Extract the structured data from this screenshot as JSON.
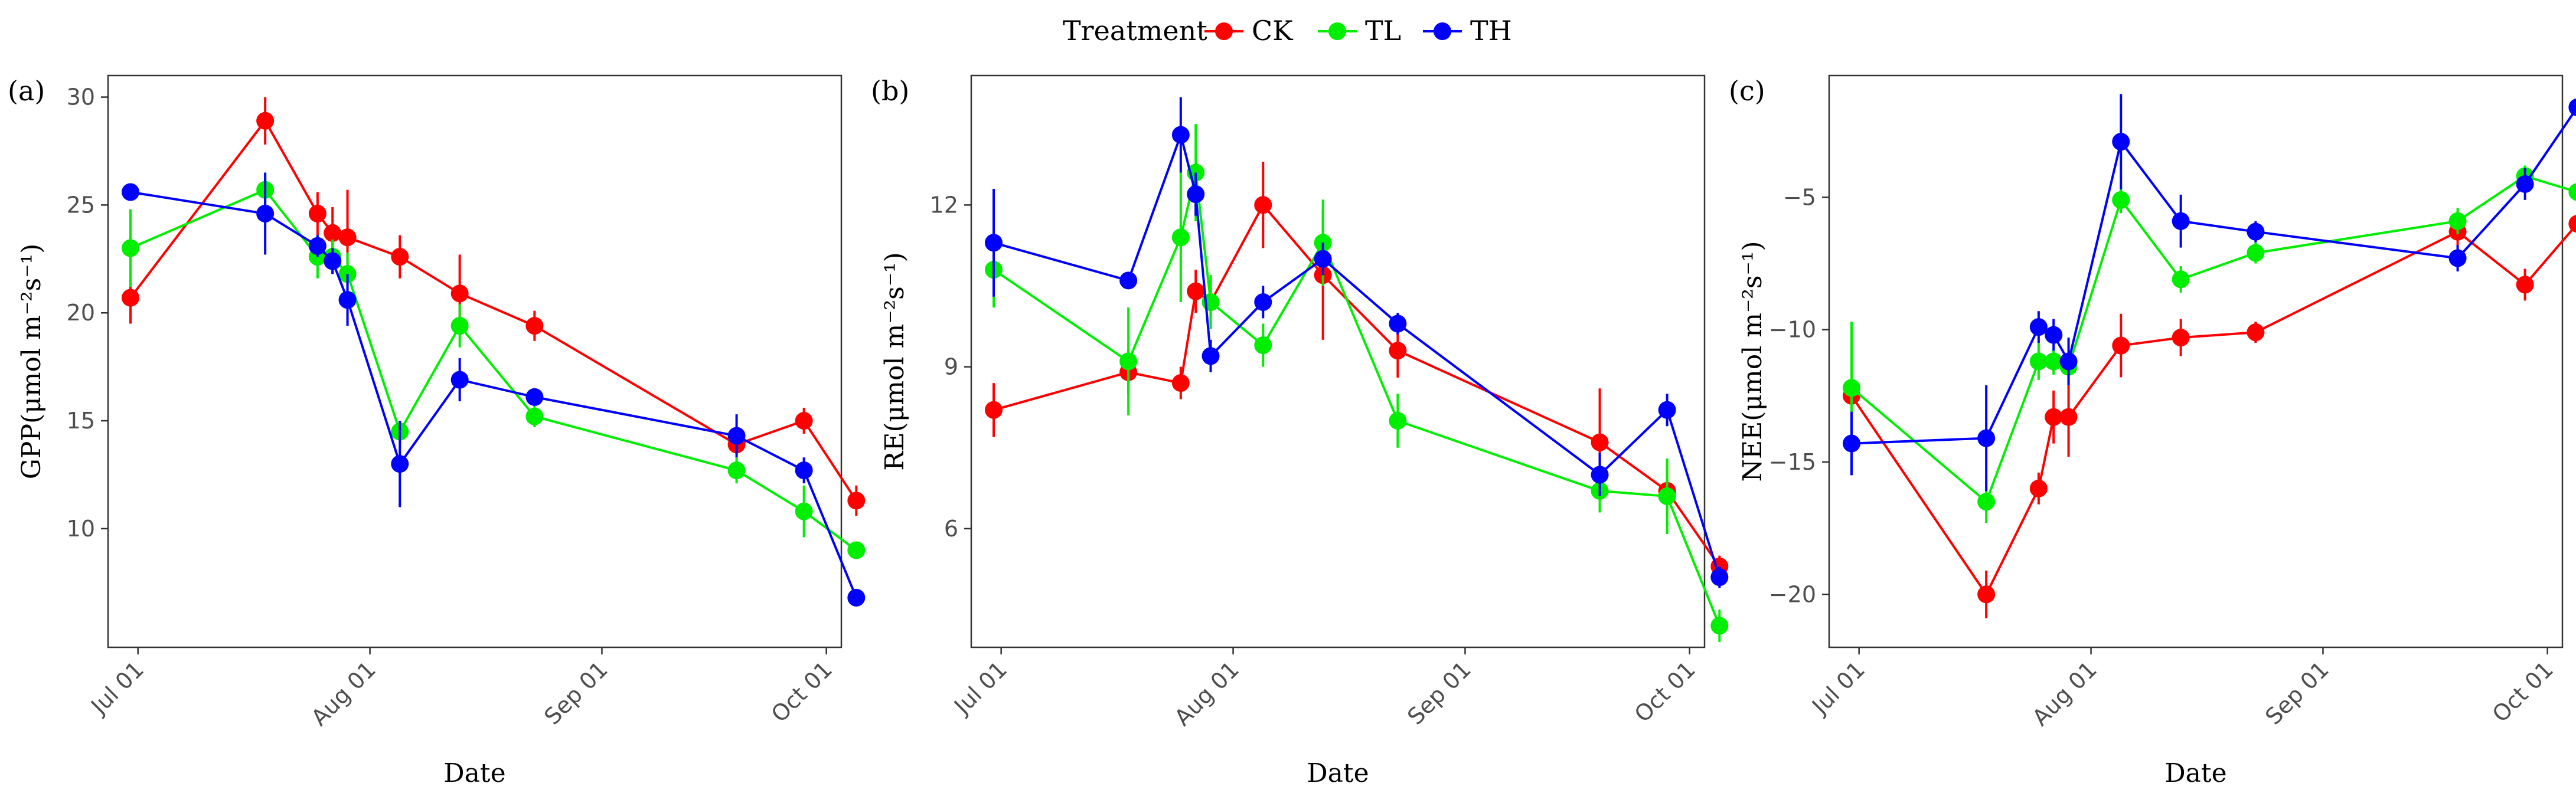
{
  "legend": {
    "title": "Treatment",
    "items": [
      {
        "key": "CK",
        "label": "CK",
        "color": "#ff0000"
      },
      {
        "key": "TL",
        "label": "TL",
        "color": "#00ee00"
      },
      {
        "key": "TH",
        "label": "TH",
        "color": "#0000ff"
      }
    ]
  },
  "chart_data": [
    {
      "type": "line",
      "panel_label": "(a)",
      "title": "",
      "xlabel": "Date",
      "ylabel": "GPP(μmol m⁻²s⁻¹)",
      "ylim": [
        4.5,
        31.0
      ],
      "yticks": [
        10,
        15,
        20,
        25,
        30
      ],
      "ytick_labels": [
        "10",
        "15",
        "20",
        "25",
        "30"
      ],
      "xlim": [
        -4,
        94
      ],
      "xticks": [
        0,
        31,
        62,
        92
      ],
      "xtick_labels": [
        "Jul 01",
        "Aug 01",
        "Sep 01",
        "Oct 01"
      ],
      "grid": false,
      "series": [
        {
          "name": "CK",
          "x": [
            -1,
            17,
            24,
            26,
            28,
            35,
            43,
            53,
            80,
            89,
            96
          ],
          "y": [
            20.7,
            28.9,
            24.6,
            23.7,
            23.5,
            22.6,
            20.9,
            19.4,
            13.9,
            15.0,
            11.3
          ],
          "err": [
            1.2,
            1.1,
            1.0,
            1.2,
            2.2,
            1.0,
            1.8,
            0.7,
            0.5,
            0.6,
            0.7
          ]
        },
        {
          "name": "TL",
          "x": [
            -1,
            17,
            24,
            26,
            28,
            35,
            43,
            53,
            80,
            89,
            96
          ],
          "y": [
            23.0,
            25.7,
            22.6,
            22.6,
            21.8,
            14.5,
            19.4,
            15.2,
            12.7,
            10.8,
            9.0
          ],
          "err": [
            1.8,
            0.8,
            1.0,
            0.8,
            1.0,
            0.5,
            1.0,
            0.5,
            0.6,
            1.2,
            0.4
          ]
        },
        {
          "name": "TH",
          "x": [
            -1,
            17,
            24,
            26,
            28,
            35,
            43,
            53,
            80,
            89,
            96
          ],
          "y": [
            25.6,
            24.6,
            23.1,
            22.4,
            20.6,
            13.0,
            16.9,
            16.1,
            14.3,
            12.7,
            6.8
          ],
          "err": [
            0.3,
            1.9,
            0.5,
            0.6,
            1.2,
            2.0,
            1.0,
            0.3,
            1.0,
            0.6,
            0.3
          ]
        }
      ]
    },
    {
      "type": "line",
      "panel_label": "(b)",
      "title": "",
      "xlabel": "Date",
      "ylabel": "RE(μmol m⁻²s⁻¹)",
      "ylim": [
        3.8,
        14.4
      ],
      "yticks": [
        6,
        9,
        12
      ],
      "ytick_labels": [
        "6",
        "9",
        "12"
      ],
      "xlim": [
        -4,
        94
      ],
      "xticks": [
        0,
        31,
        62,
        92
      ],
      "xtick_labels": [
        "Jul 01",
        "Aug 01",
        "Sep 01",
        "Oct 01"
      ],
      "grid": false,
      "series": [
        {
          "name": "CK",
          "x": [
            -1,
            17,
            24,
            26,
            28,
            35,
            43,
            53,
            80,
            89,
            96
          ],
          "y": [
            8.2,
            8.9,
            8.7,
            10.4,
            10.2,
            12.0,
            10.7,
            9.3,
            7.6,
            6.7,
            5.3
          ],
          "err": [
            0.5,
            0.4,
            0.3,
            0.4,
            0.5,
            0.8,
            1.2,
            0.5,
            1.0,
            0.5,
            0.2
          ]
        },
        {
          "name": "TL",
          "x": [
            -1,
            17,
            24,
            26,
            28,
            35,
            43,
            53,
            80,
            89,
            96
          ],
          "y": [
            10.8,
            9.1,
            11.4,
            12.6,
            10.2,
            9.4,
            11.3,
            8.0,
            6.7,
            6.6,
            4.2
          ],
          "err": [
            0.7,
            1.0,
            1.2,
            0.9,
            0.5,
            0.4,
            0.8,
            0.5,
            0.4,
            0.7,
            0.3
          ]
        },
        {
          "name": "TH",
          "x": [
            -1,
            17,
            24,
            26,
            28,
            35,
            43,
            53,
            80,
            89,
            96
          ],
          "y": [
            11.3,
            10.6,
            13.3,
            12.2,
            9.2,
            10.2,
            11.0,
            9.8,
            7.0,
            8.2,
            5.1
          ],
          "err": [
            1.0,
            0.1,
            0.7,
            0.4,
            0.3,
            0.3,
            0.3,
            0.2,
            0.4,
            0.3,
            0.2
          ]
        }
      ]
    },
    {
      "type": "line",
      "panel_label": "(c)",
      "title": "",
      "xlabel": "Date",
      "ylabel": "NEE(μmol m⁻²s⁻¹)",
      "ylim": [
        -22.0,
        -0.4
      ],
      "yticks": [
        -20,
        -15,
        -10,
        -5
      ],
      "ytick_labels": [
        "−20",
        "−15",
        "−10",
        "−5"
      ],
      "xlim": [
        -4,
        94
      ],
      "xticks": [
        0,
        31,
        62,
        92
      ],
      "xtick_labels": [
        "Jul 01",
        "Aug 01",
        "Sep 01",
        "Oct 01"
      ],
      "grid": false,
      "series": [
        {
          "name": "CK",
          "x": [
            -1,
            17,
            24,
            26,
            28,
            35,
            43,
            53,
            80,
            89,
            96
          ],
          "y": [
            -12.5,
            -20.0,
            -16.0,
            -13.3,
            -13.3,
            -10.6,
            -10.3,
            -10.1,
            -6.3,
            -8.3,
            -6.0
          ],
          "err": [
            0.5,
            0.9,
            0.6,
            1.0,
            1.5,
            1.2,
            0.7,
            0.4,
            0.8,
            0.6,
            0.7
          ]
        },
        {
          "name": "TL",
          "x": [
            -1,
            17,
            24,
            26,
            28,
            35,
            43,
            53,
            80,
            89,
            96
          ],
          "y": [
            -12.2,
            -16.5,
            -11.2,
            -11.2,
            -11.4,
            -5.1,
            -8.1,
            -7.1,
            -5.9,
            -4.2,
            -4.8
          ],
          "err": [
            2.5,
            0.8,
            0.7,
            0.5,
            0.5,
            0.5,
            0.5,
            0.4,
            0.5,
            0.4,
            0.4
          ]
        },
        {
          "name": "TH",
          "x": [
            -1,
            17,
            24,
            26,
            28,
            35,
            43,
            53,
            80,
            89,
            96
          ],
          "y": [
            -14.3,
            -14.1,
            -9.9,
            -10.2,
            -11.2,
            -2.9,
            -5.9,
            -6.3,
            -7.3,
            -4.5,
            -1.6
          ],
          "err": [
            1.2,
            2.0,
            0.6,
            0.6,
            0.9,
            1.8,
            1.0,
            0.4,
            0.5,
            0.6,
            0.4
          ]
        }
      ]
    }
  ]
}
